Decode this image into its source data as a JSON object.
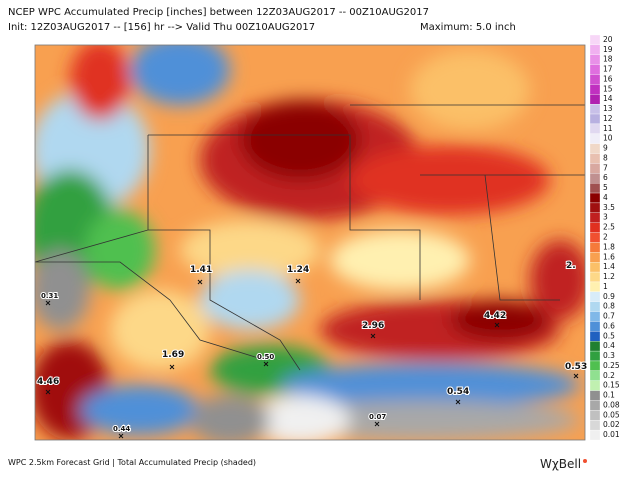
{
  "header": {
    "line1": "NCEP WPC Accumulated Precip [inches] between 12Z03AUG2017 -- 00Z10AUG2017",
    "line2": "Init: 12Z03AUG2017 -- [156] hr --> Valid Thu 00Z10AUG2017",
    "maximum": "Maximum: 5.0 inch"
  },
  "points": [
    "1.41",
    "1.24",
    "2.96",
    "4.42",
    "1.69",
    "4.46",
    "0.54",
    "0.53",
    "0.50",
    "0.44",
    "0.31",
    "0.07",
    "2."
  ],
  "legend": {
    "items": [
      {
        "label": "20",
        "color": "#f7d7f7"
      },
      {
        "label": "19",
        "color": "#f0b0f0"
      },
      {
        "label": "18",
        "color": "#e890e8"
      },
      {
        "label": "17",
        "color": "#df6fdf"
      },
      {
        "label": "16",
        "color": "#d050d0"
      },
      {
        "label": "15",
        "color": "#c030c0"
      },
      {
        "label": "14",
        "color": "#b020b0"
      },
      {
        "label": "13",
        "color": "#c8c0e8"
      },
      {
        "label": "12",
        "color": "#b8b0e0"
      },
      {
        "label": "11",
        "color": "#e0d8f0"
      },
      {
        "label": "10",
        "color": "#f0eef8"
      },
      {
        "label": "9",
        "color": "#f0d8c8"
      },
      {
        "label": "8",
        "color": "#e8c0b0"
      },
      {
        "label": "7",
        "color": "#d8a8a0"
      },
      {
        "label": "6",
        "color": "#c09090"
      },
      {
        "label": "5",
        "color": "#a05050"
      },
      {
        "label": "4",
        "color": "#8b0000"
      },
      {
        "label": "3.5",
        "color": "#a01010"
      },
      {
        "label": "3",
        "color": "#c02020"
      },
      {
        "label": "2.5",
        "color": "#e03020"
      },
      {
        "label": "2",
        "color": "#f05030"
      },
      {
        "label": "1.8",
        "color": "#f57a3a"
      },
      {
        "label": "1.6",
        "color": "#f8a050"
      },
      {
        "label": "1.4",
        "color": "#fbc068"
      },
      {
        "label": "1.2",
        "color": "#fdd888"
      },
      {
        "label": "1",
        "color": "#fff0b0"
      },
      {
        "label": "0.9",
        "color": "#d8ecf8"
      },
      {
        "label": "0.8",
        "color": "#b0d8f0"
      },
      {
        "label": "0.7",
        "color": "#80b8e8"
      },
      {
        "label": "0.6",
        "color": "#4f90d8"
      },
      {
        "label": "0.5",
        "color": "#2060c0"
      },
      {
        "label": "0.4",
        "color": "#208030"
      },
      {
        "label": "0.3",
        "color": "#30a040"
      },
      {
        "label": "0.25",
        "color": "#50c050"
      },
      {
        "label": "0.2",
        "color": "#90e090"
      },
      {
        "label": "0.15",
        "color": "#c0f0b0"
      },
      {
        "label": "0.1",
        "color": "#909090"
      },
      {
        "label": "0.08",
        "color": "#a8a8a8"
      },
      {
        "label": "0.05",
        "color": "#c0c0c0"
      },
      {
        "label": "0.02",
        "color": "#d8d8d8"
      },
      {
        "label": "0.01",
        "color": "#f0f0f0"
      }
    ]
  },
  "footer": {
    "text": "WPC 2.5km Forecast Grid | Total Accumulated Precip (shaded)",
    "logo": "WχBell"
  }
}
